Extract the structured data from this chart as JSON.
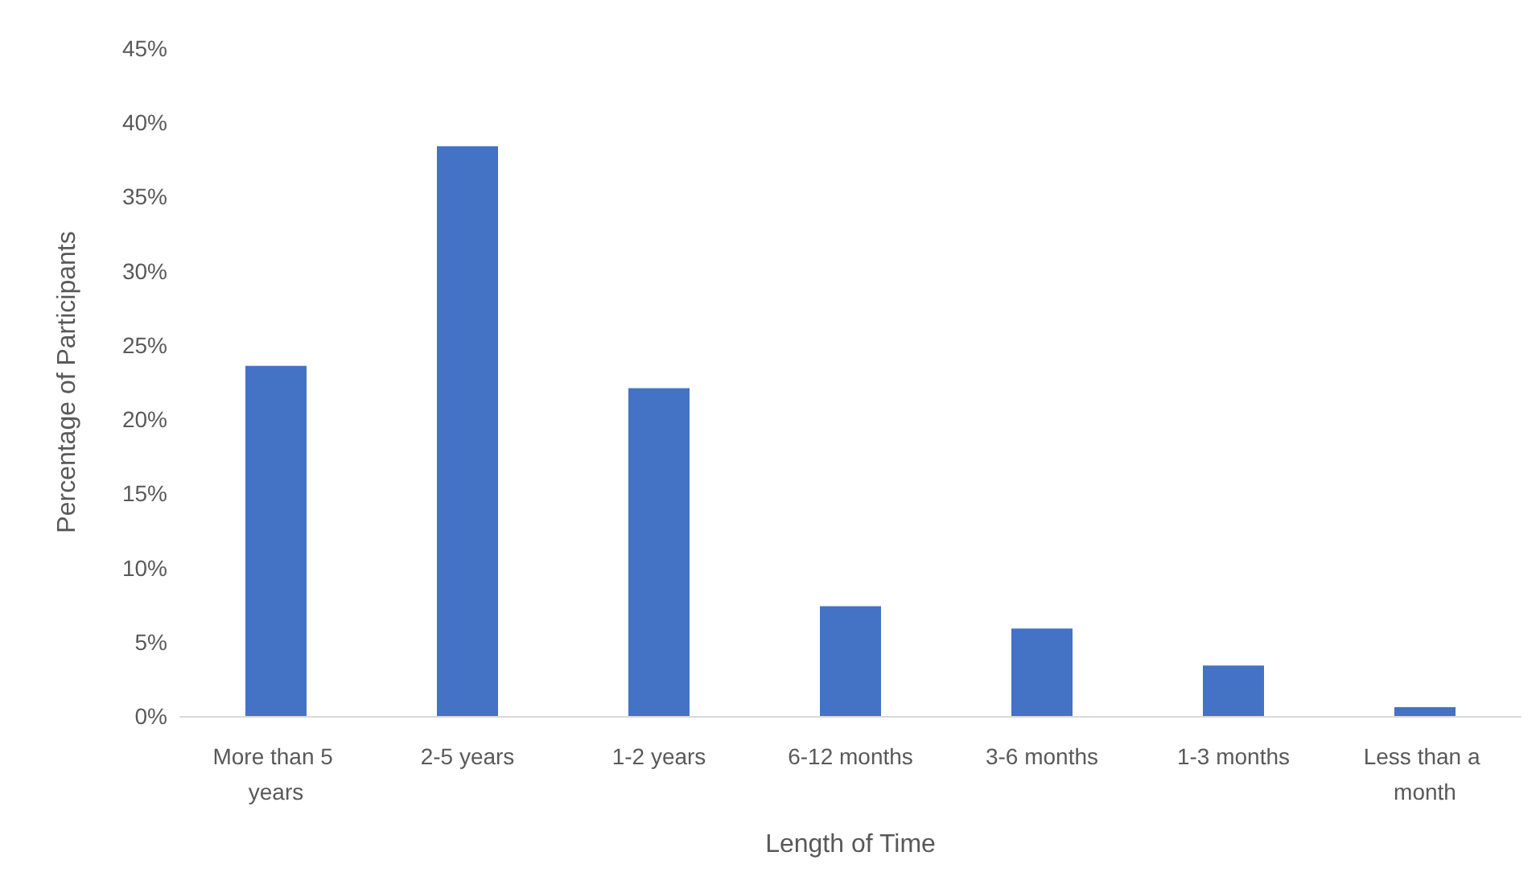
{
  "chart_data": {
    "type": "bar",
    "xlabel": "Length of Time",
    "ylabel": "Percentage of Participants",
    "categories": [
      "More than 5 years",
      "2-5 years",
      "1-2 years",
      "6-12 months",
      "3-6 months",
      "1-3 months",
      "Less than a month"
    ],
    "values": [
      23.6,
      38.4,
      22.1,
      7.4,
      5.9,
      3.4,
      0.6
    ],
    "color": "#4472c4",
    "ylim": [
      0,
      45
    ],
    "yticks": [
      {
        "value": 0,
        "label": "0%"
      },
      {
        "value": 5,
        "label": "5%"
      },
      {
        "value": 10,
        "label": "10%"
      },
      {
        "value": 15,
        "label": "15%"
      },
      {
        "value": 20,
        "label": "20%"
      },
      {
        "value": 25,
        "label": "25%"
      },
      {
        "value": 30,
        "label": "30%"
      },
      {
        "value": 35,
        "label": "35%"
      },
      {
        "value": 40,
        "label": "40%"
      },
      {
        "value": 45,
        "label": "45%"
      }
    ],
    "grid": false
  }
}
